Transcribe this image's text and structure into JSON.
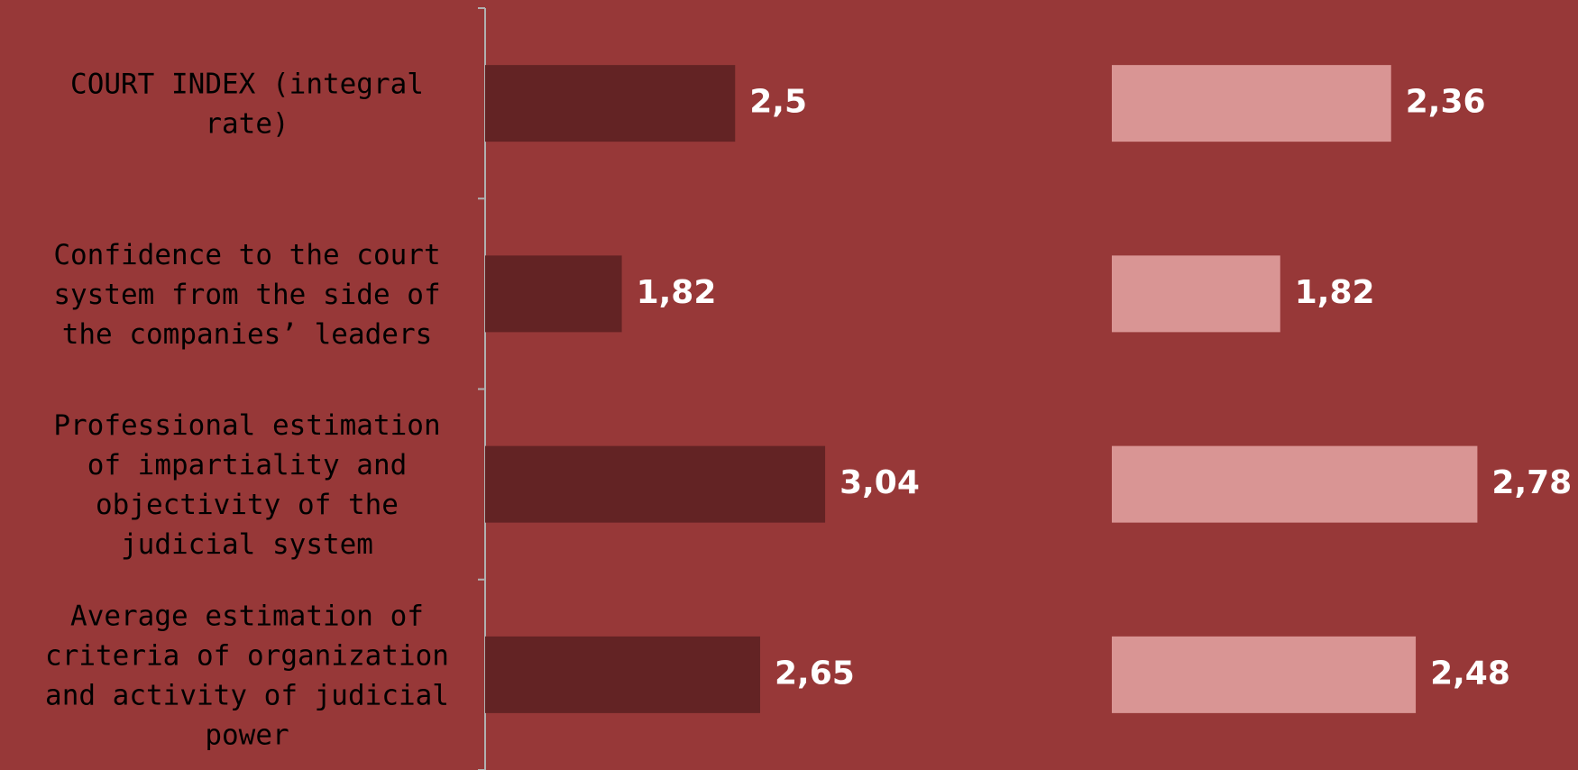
{
  "chart_data": [
    {
      "type": "bar",
      "orientation": "horizontal",
      "categories": [
        "COURT INDEX (integral\nrate)",
        "Confidence to the court\nsystem from the side of\nthe companies’ leaders",
        "Professional estimation\nof impartiality and\nobjectivity of the\njudicial system",
        "Average estimation of\ncriteria of organization\nand activity of judicial\npower"
      ],
      "values": [
        2.5,
        1.82,
        3.04,
        2.65
      ],
      "value_labels": [
        "2,5",
        "1,82",
        "3,04",
        "2,65"
      ],
      "color": "#632324",
      "xlim": [
        1,
        4.76
      ]
    },
    {
      "type": "bar",
      "orientation": "horizontal",
      "values": [
        2.36,
        1.82,
        2.78,
        2.48
      ],
      "value_labels": [
        "2,36",
        "1,82",
        "2,78",
        "2,48"
      ],
      "color": "#d99594",
      "xlim": [
        1,
        3.27
      ]
    }
  ]
}
